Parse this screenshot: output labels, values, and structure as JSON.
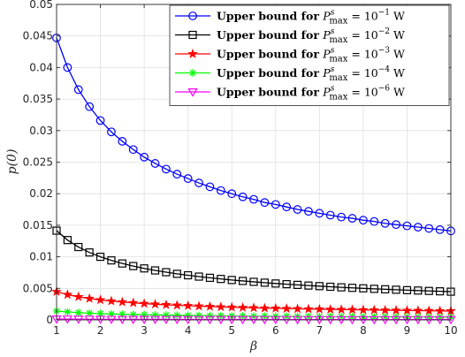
{
  "chart_data": {
    "type": "line",
    "title": "",
    "xlabel": "β",
    "ylabel": "p(0)",
    "xlim": [
      1,
      10
    ],
    "ylim": [
      0,
      0.05
    ],
    "xticks": [
      1,
      2,
      3,
      4,
      5,
      6,
      7,
      8,
      9,
      10
    ],
    "yticks": [
      0,
      0.005,
      0.01,
      0.015,
      0.02,
      0.025,
      0.03,
      0.035,
      0.04,
      0.045,
      0.05
    ],
    "ytick_labels": [
      "0",
      "0.005",
      "0.01",
      "0.015",
      "0.02",
      "0.025",
      "0.03",
      "0.035",
      "0.04",
      "0.045",
      "0.05"
    ],
    "grid": true,
    "legend_position": "top-right",
    "x": [
      1,
      1.25,
      1.5,
      1.75,
      2,
      2.25,
      2.5,
      2.75,
      3,
      3.25,
      3.5,
      3.75,
      4,
      4.25,
      4.5,
      4.75,
      5,
      5.25,
      5.5,
      5.75,
      6,
      6.25,
      6.5,
      6.75,
      7,
      7.25,
      7.5,
      7.75,
      8,
      8.25,
      8.5,
      8.75,
      9,
      9.25,
      9.5,
      9.75,
      10
    ],
    "series": [
      {
        "label_prefix": "Upper bound for ",
        "label_exp": "-1",
        "color": "#0000ff",
        "marker": "circle",
        "values": [
          0.0447,
          0.04,
          0.0365,
          0.0338,
          0.0316,
          0.0298,
          0.0283,
          0.027,
          0.0258,
          0.0248,
          0.0239,
          0.0231,
          0.0224,
          0.0217,
          0.0211,
          0.0205,
          0.02,
          0.0195,
          0.0191,
          0.0186,
          0.0183,
          0.0179,
          0.0175,
          0.0172,
          0.0169,
          0.0166,
          0.0163,
          0.0161,
          0.0158,
          0.0156,
          0.0153,
          0.0151,
          0.0149,
          0.0147,
          0.0145,
          0.0143,
          0.0141
        ]
      },
      {
        "label_prefix": "Upper bound for ",
        "label_exp": "-2",
        "color": "#000000",
        "marker": "square",
        "values": [
          0.01414,
          0.01265,
          0.01155,
          0.01069,
          0.01,
          0.00943,
          0.00894,
          0.00853,
          0.00816,
          0.00784,
          0.00756,
          0.0073,
          0.00707,
          0.00686,
          0.00667,
          0.00649,
          0.00632,
          0.00617,
          0.00603,
          0.0059,
          0.00577,
          0.00566,
          0.00555,
          0.00544,
          0.00535,
          0.00525,
          0.00516,
          0.00508,
          0.005,
          0.00492,
          0.00485,
          0.00478,
          0.00471,
          0.00465,
          0.00459,
          0.00453,
          0.00447
        ]
      },
      {
        "label_prefix": "Upper bound for ",
        "label_exp": "-3",
        "color": "#ff0000",
        "marker": "star",
        "values": [
          0.00447,
          0.004,
          0.00365,
          0.00338,
          0.00316,
          0.00298,
          0.00283,
          0.0027,
          0.00258,
          0.00248,
          0.00239,
          0.00231,
          0.00224,
          0.00217,
          0.00211,
          0.00205,
          0.002,
          0.00195,
          0.00191,
          0.00186,
          0.00183,
          0.00179,
          0.00175,
          0.00172,
          0.00169,
          0.00166,
          0.00163,
          0.00161,
          0.00158,
          0.00156,
          0.00153,
          0.00151,
          0.00149,
          0.00147,
          0.00145,
          0.00143,
          0.00141
        ]
      },
      {
        "label_prefix": "Upper bound for ",
        "label_exp": "-4",
        "color": "#00ff00",
        "marker": "asterisk",
        "values": [
          0.00141,
          0.00126,
          0.00115,
          0.00107,
          0.001,
          0.00094,
          0.00089,
          0.00085,
          0.00082,
          0.00078,
          0.00076,
          0.00073,
          0.00071,
          0.00069,
          0.00067,
          0.00065,
          0.00063,
          0.00062,
          0.0006,
          0.00059,
          0.00058,
          0.00057,
          0.00055,
          0.00054,
          0.00053,
          0.00053,
          0.00052,
          0.00051,
          0.0005,
          0.00049,
          0.00049,
          0.00048,
          0.00047,
          0.00047,
          0.00046,
          0.00045,
          0.00045
        ]
      },
      {
        "label_prefix": "Upper bound for ",
        "label_exp": "-6",
        "color": "#ff00ff",
        "marker": "triangle-down",
        "values": [
          0.000141,
          0.000126,
          0.000115,
          0.000107,
          0.0001,
          9.4e-05,
          8.9e-05,
          8.5e-05,
          8.2e-05,
          7.8e-05,
          7.6e-05,
          7.3e-05,
          7.1e-05,
          6.9e-05,
          6.7e-05,
          6.5e-05,
          6.3e-05,
          6.2e-05,
          6e-05,
          5.9e-05,
          5.8e-05,
          5.7e-05,
          5.5e-05,
          5.4e-05,
          5.3e-05,
          5.3e-05,
          5.2e-05,
          5.1e-05,
          5e-05,
          4.9e-05,
          4.9e-05,
          4.8e-05,
          4.7e-05,
          4.7e-05,
          4.6e-05,
          4.5e-05,
          4.5e-05
        ]
      }
    ]
  }
}
